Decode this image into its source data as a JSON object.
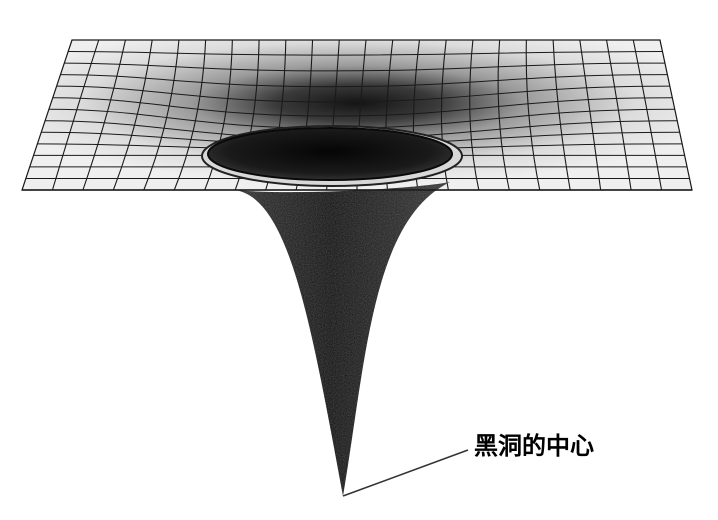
{
  "diagram": {
    "annotation_label": "黑洞的中心",
    "colors": {
      "grid_line": "#1a1a1a",
      "surface_light": "#e9e9e9",
      "funnel_dark": "#111111"
    }
  }
}
